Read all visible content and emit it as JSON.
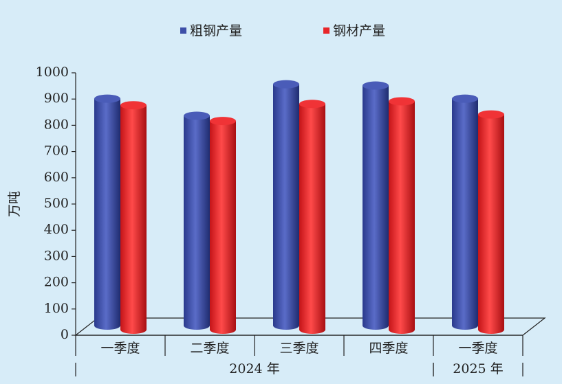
{
  "chart_data": {
    "type": "bar",
    "y_label": "万吨",
    "categories": [
      "一季度",
      "二季度",
      "三季度",
      "四季度",
      "一季度"
    ],
    "groups": [
      {
        "label": "2024 年",
        "span": 4
      },
      {
        "label": "2025 年",
        "span": 1
      }
    ],
    "series": [
      {
        "name": "粗钢产量",
        "color": "#3d4fa8",
        "values": [
          870,
          805,
          925,
          920,
          870
        ]
      },
      {
        "name": "钢材产量",
        "color": "#e8262a",
        "values": [
          845,
          785,
          850,
          860,
          810
        ]
      }
    ],
    "ylim": [
      0,
      1000
    ],
    "yticks": [
      0,
      100,
      200,
      300,
      400,
      500,
      600,
      700,
      800,
      900,
      1000
    ]
  }
}
